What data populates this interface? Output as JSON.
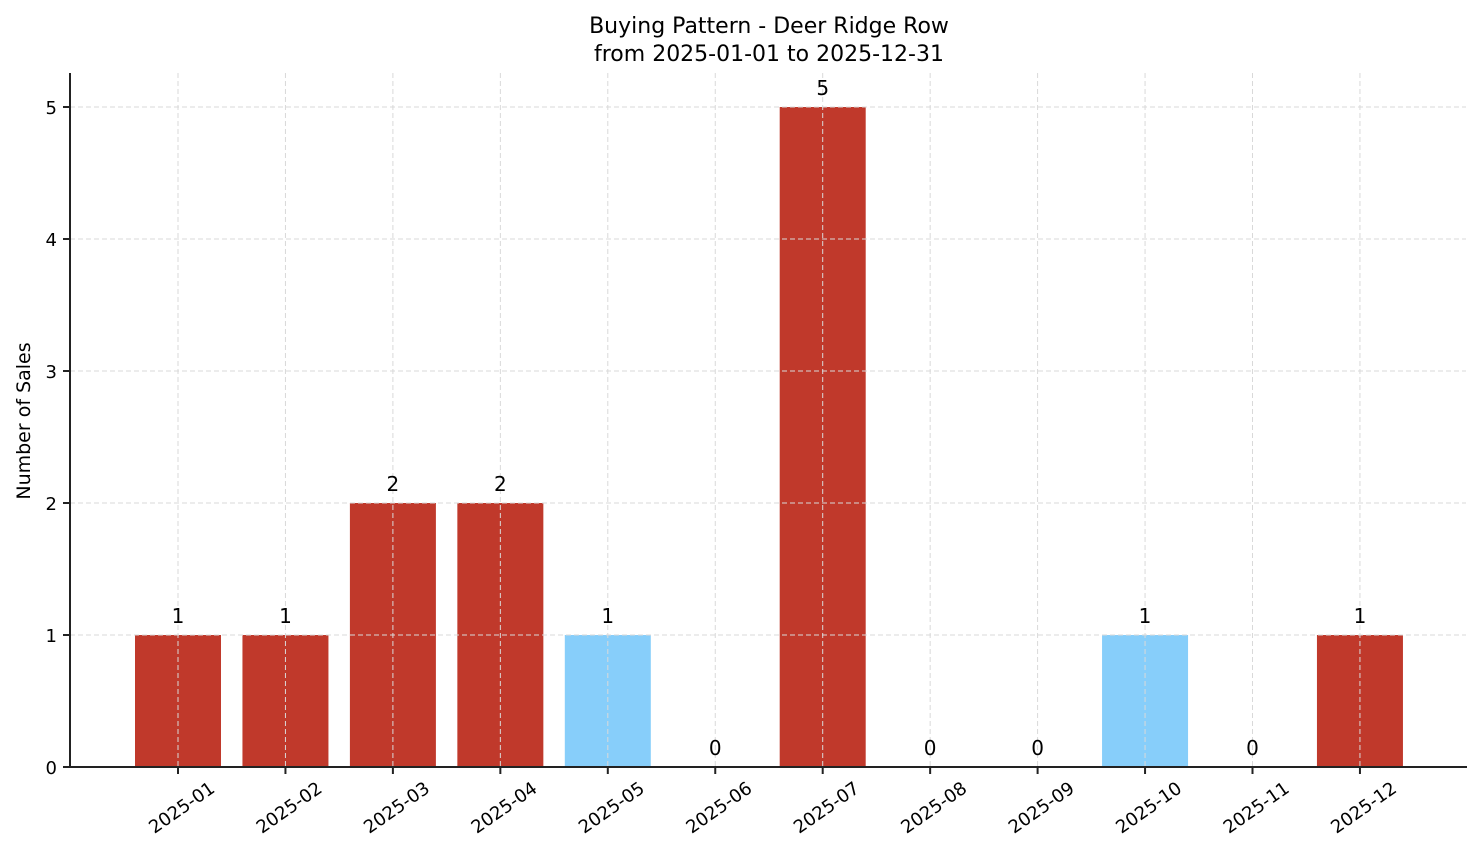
{
  "chart_data": {
    "type": "bar",
    "title": "Buying Pattern - Deer Ridge Row",
    "subtitle": "from 2025-01-01 to 2025-12-31",
    "xlabel": "",
    "ylabel": "Number of Sales",
    "categories": [
      "2025-01",
      "2025-02",
      "2025-03",
      "2025-04",
      "2025-05",
      "2025-06",
      "2025-07",
      "2025-08",
      "2025-09",
      "2025-10",
      "2025-11",
      "2025-12"
    ],
    "values": [
      1,
      1,
      2,
      2,
      1,
      0,
      5,
      0,
      0,
      1,
      0,
      1
    ],
    "bar_colors": [
      "#c0392b",
      "#c0392b",
      "#c0392b",
      "#c0392b",
      "#87cefa",
      "#c0392b",
      "#c0392b",
      "#c0392b",
      "#c0392b",
      "#87cefa",
      "#c0392b",
      "#c0392b"
    ],
    "data_labels": [
      "1",
      "1",
      "2",
      "2",
      "1",
      "0",
      "5",
      "0",
      "0",
      "1",
      "0",
      "1"
    ],
    "ylim": [
      0,
      5.25
    ],
    "yticks": [
      0,
      1,
      2,
      3,
      4,
      5
    ],
    "grid": true,
    "grid_style": "dashed",
    "legend": null
  },
  "colors": {
    "primary": "#c0392b",
    "highlight": "#87cefa",
    "grid": "#d9d9d9",
    "axis": "#222222"
  }
}
